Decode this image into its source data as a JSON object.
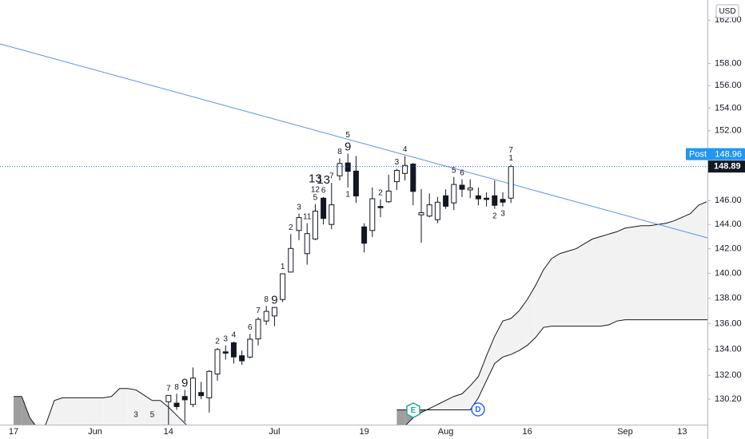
{
  "chart_data": {
    "type": "candlestick",
    "currency": "USD",
    "post_label": "Post",
    "post_price": 148.96,
    "events": {
      "earnings": "E",
      "dividend": "D"
    },
    "log_scale": true,
    "ylim": [
      128.3,
      163.9
    ],
    "yticks": [
      {
        "value": 162,
        "label": "162.00"
      },
      {
        "value": 158,
        "label": "158.00"
      },
      {
        "value": 156,
        "label": "156.00"
      },
      {
        "value": 154,
        "label": "154.00"
      },
      {
        "value": 152,
        "label": "152.00"
      },
      {
        "value": 146,
        "label": "146.00"
      },
      {
        "value": 144,
        "label": "144.00"
      },
      {
        "value": 142,
        "label": "142.00"
      },
      {
        "value": 140,
        "label": "140.00"
      },
      {
        "value": 138,
        "label": "138.00"
      },
      {
        "value": 136,
        "label": "136.00"
      },
      {
        "value": 134,
        "label": "134.00"
      },
      {
        "value": 132,
        "label": "132.00"
      },
      {
        "value": 130.2,
        "label": "130.20"
      }
    ],
    "categories": [
      "17",
      null,
      null,
      null,
      null,
      null,
      null,
      null,
      null,
      null,
      "Jun",
      null,
      null,
      null,
      null,
      null,
      null,
      null,
      null,
      "14",
      null,
      null,
      null,
      null,
      null,
      null,
      null,
      null,
      null,
      null,
      null,
      null,
      "Jul",
      null,
      null,
      null,
      null,
      null,
      null,
      null,
      null,
      null,
      null,
      "19",
      null,
      null,
      null,
      null,
      null,
      null,
      null,
      null,
      null,
      "Aug",
      null,
      null,
      null,
      null,
      null,
      null,
      null,
      null,
      null,
      "16",
      null,
      null,
      null,
      null,
      null,
      null,
      null,
      null,
      null,
      null,
      null,
      "Sep",
      null,
      null,
      null,
      null,
      null,
      null,
      "13",
      null,
      null,
      null
    ],
    "up_color": "#ffffff",
    "down_color": "#131722",
    "last_price_color": "#2962ff",
    "open": [
      null,
      null,
      null,
      null,
      null,
      null,
      null,
      null,
      null,
      null,
      null,
      null,
      null,
      null,
      null,
      null,
      null,
      null,
      null,
      130.0,
      129.9,
      130.4,
      129.8,
      130.7,
      130.3,
      132.1,
      133.8,
      134.5,
      133.5,
      133.4,
      134.8,
      136.2,
      136.6,
      137.9,
      140.1,
      143.5,
      141.6,
      142.8,
      146.2,
      144.0,
      148.1,
      149.2,
      148.5,
      143.8,
      143.5,
      145.5,
      145.9,
      147.6,
      148.3,
      149.1,
      144.8,
      144.7,
      144.4,
      146.4,
      145.8,
      147.3,
      146.9,
      146.4,
      146.2,
      146.4,
      146.1,
      146.2,
      null,
      null,
      null,
      null,
      null,
      null,
      null,
      null,
      null,
      null,
      null,
      null,
      null,
      null,
      null,
      null,
      null,
      null,
      null,
      null,
      null,
      null,
      null,
      null
    ],
    "high": [
      null,
      null,
      null,
      null,
      null,
      null,
      null,
      null,
      null,
      null,
      null,
      null,
      null,
      null,
      null,
      null,
      null,
      null,
      null,
      130.5,
      130.6,
      130.9,
      132.6,
      131.5,
      132.4,
      134.1,
      134.3,
      134.6,
      133.9,
      135.2,
      136.5,
      137.4,
      137.3,
      140.0,
      143.2,
      144.9,
      144.1,
      145.7,
      146.3,
      147.5,
      149.6,
      150.0,
      149.8,
      144.1,
      147.1,
      146.1,
      148.2,
      148.7,
      149.8,
      149.2,
      146.97,
      146.6,
      146.3,
      146.95,
      148.0,
      147.8,
      147.8,
      147.1,
      146.7,
      147.7,
      146.7,
      149.05,
      null,
      null,
      null,
      null,
      null,
      null,
      null,
      null,
      null,
      null,
      null,
      null,
      null,
      null,
      null,
      null,
      null,
      null,
      null,
      null,
      null,
      null,
      null,
      null
    ],
    "low": [
      null,
      null,
      null,
      null,
      null,
      null,
      null,
      null,
      null,
      null,
      null,
      null,
      null,
      null,
      null,
      null,
      null,
      null,
      null,
      127.1,
      129.4,
      128.5,
      129.6,
      130.2,
      129.2,
      131.6,
      133.2,
      132.9,
      132.8,
      133.3,
      134.3,
      135.9,
      135.8,
      137.7,
      140.1,
      142.7,
      140.7,
      142.7,
      144.0,
      143.6,
      147.7,
      147.1,
      145.8,
      141.7,
      142.96,
      144.6,
      145.8,
      146.9,
      147.7,
      145.6,
      142.5,
      144.6,
      144.1,
      145.3,
      145.2,
      146.3,
      146.2,
      145.6,
      145.5,
      145.3,
      145.5,
      145.8,
      null,
      null,
      null,
      null,
      null,
      null,
      null,
      null,
      null,
      null,
      null,
      null,
      null,
      null,
      null,
      null,
      null,
      null,
      null,
      null,
      null,
      null,
      null,
      null
    ],
    "close": [
      null,
      null,
      null,
      null,
      null,
      null,
      null,
      null,
      null,
      null,
      null,
      null,
      null,
      null,
      null,
      null,
      null,
      null,
      null,
      130.48,
      129.64,
      130.15,
      131.79,
      130.46,
      132.3,
      133.98,
      133.7,
      133.41,
      133.11,
      134.78,
      136.33,
      136.96,
      137.27,
      139.96,
      142.02,
      144.57,
      143.24,
      145.11,
      144.5,
      145.64,
      149.15,
      148.48,
      146.39,
      142.45,
      146.15,
      145.4,
      146.8,
      148.56,
      148.99,
      146.77,
      144.98,
      145.64,
      145.86,
      145.52,
      147.36,
      146.95,
      147.06,
      146.14,
      146.09,
      145.6,
      145.86,
      148.89,
      null,
      null,
      null,
      null,
      null,
      null,
      null,
      null,
      null,
      null,
      null,
      null,
      null,
      null,
      null,
      null,
      null,
      null,
      null,
      null,
      null,
      null,
      null,
      null
    ],
    "cloud": {
      "bull_color": "#f2f2f2",
      "bear_color": "#9e9e9e",
      "line_color": "#131722",
      "span_a": [
        127.8,
        127.6,
        127.5,
        127.5,
        128.4,
        130.1,
        130.3,
        130.3,
        130.3,
        130.3,
        130.3,
        130.3,
        130.4,
        131.0,
        131.0,
        130.9,
        130.5,
        130.1,
        130.1,
        129.6,
        129.0,
        128.4,
        127.8,
        null,
        null,
        null,
        null,
        null,
        null,
        null,
        null,
        null,
        null,
        null,
        null,
        null,
        null,
        null,
        null,
        null,
        null,
        null,
        null,
        null,
        null,
        null,
        null,
        127.9,
        128.2,
        128.8,
        129.2,
        129.5,
        129.8,
        130.1,
        130.4,
        130.6,
        131.2,
        131.9,
        133.5,
        135.0,
        136.2,
        136.4,
        137.0,
        137.9,
        139.0,
        140.3,
        141.2,
        141.6,
        141.8,
        142.0,
        142.4,
        142.8,
        143.0,
        143.2,
        143.4,
        143.7,
        143.8,
        143.9,
        143.9,
        144.0,
        144.1,
        144.3,
        144.6,
        144.9,
        145.6,
        145.9
      ],
      "span_b": [
        130.4,
        130.4,
        128.8,
        128.0,
        127.5,
        127.3,
        127.3,
        127.3,
        127.3,
        127.3,
        127.3,
        127.3,
        127.3,
        127.3,
        127.3,
        127.3,
        127.3,
        127.3,
        127.3,
        127.3,
        127.3,
        127.3,
        127.3,
        null,
        null,
        null,
        null,
        null,
        null,
        null,
        null,
        null,
        null,
        null,
        null,
        null,
        null,
        null,
        null,
        null,
        null,
        null,
        null,
        null,
        null,
        null,
        null,
        129.4,
        129.4,
        129.4,
        129.4,
        129.4,
        129.4,
        129.4,
        129.4,
        129.4,
        129.4,
        130.3,
        131.6,
        132.9,
        133.4,
        133.6,
        133.9,
        134.3,
        134.9,
        135.7,
        135.8,
        135.8,
        135.8,
        135.8,
        135.8,
        135.8,
        135.8,
        135.9,
        136.2,
        136.3,
        136.3,
        136.3,
        136.3,
        136.3,
        136.3,
        136.3,
        136.3,
        136.3,
        136.3,
        136.3,
        136.3
      ]
    },
    "counts_above": [
      null,
      null,
      null,
      null,
      null,
      null,
      null,
      null,
      null,
      null,
      null,
      null,
      null,
      null,
      null,
      null,
      null,
      null,
      null,
      [
        {
          "text": "7",
          "color": "#131722"
        }
      ],
      [
        {
          "text": "8",
          "color": "#131722"
        }
      ],
      [
        {
          "text": "9",
          "color": "#131722",
          "style": "large"
        }
      ],
      null,
      null,
      null,
      [
        {
          "text": "2",
          "color": "#131722"
        }
      ],
      [
        {
          "text": "3",
          "color": "#131722"
        }
      ],
      [
        {
          "text": "4",
          "color": "#131722"
        }
      ],
      null,
      [
        {
          "text": "6",
          "color": "#131722"
        }
      ],
      [
        {
          "text": "7",
          "color": "#131722"
        }
      ],
      [
        {
          "text": "8",
          "color": "#131722"
        }
      ],
      [
        {
          "text": "9",
          "color": "#131722",
          "style": "large"
        }
      ],
      [
        {
          "text": "1",
          "color": "#131722"
        }
      ],
      [
        {
          "text": "2",
          "color": "#131722"
        }
      ],
      [
        {
          "text": "3",
          "color": "#131722"
        }
      ],
      [
        {
          "text": "11",
          "color": "#f23645"
        }
      ],
      [
        {
          "text": "5",
          "color": "#131722"
        },
        {
          "text": "12",
          "color": "#f23645"
        },
        {
          "text": "13",
          "color": "#9c27b0",
          "style": "large"
        }
      ],
      [
        {
          "text": "6",
          "color": "#131722"
        },
        {
          "text": "13",
          "color": "#f23645",
          "style": "large"
        }
      ],
      [
        {
          "text": "7",
          "color": "#131722"
        }
      ],
      [
        {
          "text": "8",
          "color": "#131722"
        }
      ],
      [
        {
          "text": "9",
          "color": "#131722",
          "style": "large"
        },
        {
          "text": "5",
          "color": "#9c27b0"
        }
      ],
      null,
      null,
      null,
      [
        {
          "text": "2",
          "color": "#f23645"
        }
      ],
      null,
      [
        {
          "text": "3",
          "color": "#f23645"
        }
      ],
      [
        {
          "text": "4",
          "color": "#f23645"
        }
      ],
      null,
      null,
      null,
      null,
      null,
      [
        {
          "text": "5",
          "color": "#f23645"
        }
      ],
      [
        {
          "text": "6",
          "color": "#f23645"
        }
      ],
      null,
      null,
      null,
      null,
      null,
      [
        {
          "text": "1",
          "color": "#131722"
        },
        {
          "text": "7",
          "color": "#f23645"
        }
      ],
      null,
      null,
      null,
      null,
      null,
      null,
      null,
      null,
      null,
      null,
      null,
      null,
      null,
      null,
      null,
      null,
      null,
      null,
      null,
      null,
      null,
      null,
      null,
      null
    ],
    "counts_below": [
      null,
      null,
      null,
      null,
      null,
      null,
      null,
      null,
      null,
      null,
      null,
      null,
      null,
      null,
      null,
      [
        {
          "text": "3",
          "color": "#131722"
        }
      ],
      null,
      [
        {
          "text": "5",
          "color": "#131722"
        }
      ],
      null,
      null,
      null,
      null,
      null,
      null,
      null,
      null,
      null,
      null,
      null,
      null,
      null,
      null,
      null,
      null,
      null,
      null,
      null,
      null,
      null,
      null,
      null,
      [
        {
          "text": "1",
          "color": "#f23645"
        }
      ],
      null,
      null,
      null,
      null,
      null,
      null,
      null,
      null,
      null,
      null,
      null,
      null,
      null,
      null,
      null,
      null,
      null,
      [
        {
          "text": "2",
          "color": "#131722"
        }
      ],
      [
        {
          "text": "3",
          "color": "#131722"
        }
      ],
      null,
      null,
      null,
      null,
      null,
      null,
      null,
      null,
      null,
      null,
      null,
      null,
      null,
      null,
      null,
      null,
      null,
      null,
      null,
      null,
      null,
      null,
      null,
      null,
      null
    ]
  }
}
